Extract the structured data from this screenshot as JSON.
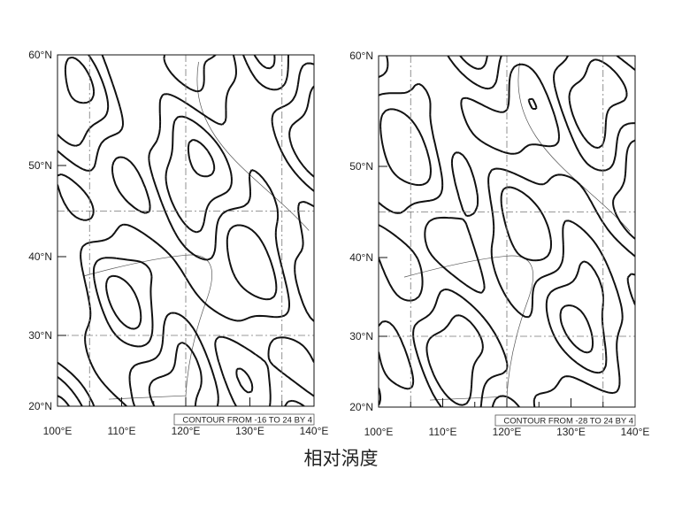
{
  "caption": "相对涡度",
  "chart_data": [
    {
      "type": "contour",
      "xlim": [
        100,
        140
      ],
      "ylim": [
        20,
        60
      ],
      "x_ticks": [
        "100°E",
        "110°E",
        "120°E",
        "130°E",
        "140°E"
      ],
      "y_ticks": [
        "20°N",
        "30°N",
        "40°N",
        "50°N",
        "60°N"
      ],
      "grid_lon": [
        105,
        120,
        135
      ],
      "grid_lat": [
        30,
        45
      ],
      "contour_info": "CONTOUR FROM -16 TO 24 BY 4",
      "contour_min": -16,
      "contour_max": 24,
      "contour_interval": 4
    },
    {
      "type": "contour",
      "xlim": [
        100,
        140
      ],
      "ylim": [
        20,
        60
      ],
      "x_ticks": [
        "100°E",
        "110°E",
        "120°E",
        "130°E",
        "140°E"
      ],
      "y_ticks": [
        "20°N",
        "30°N",
        "40°N",
        "50°N",
        "60°N"
      ],
      "grid_lon": [
        105,
        120,
        135
      ],
      "grid_lat": [
        30,
        45
      ],
      "contour_info": "CONTOUR FROM -28 TO 24 BY 4",
      "contour_min": -28,
      "contour_max": 24,
      "contour_interval": 4
    }
  ]
}
